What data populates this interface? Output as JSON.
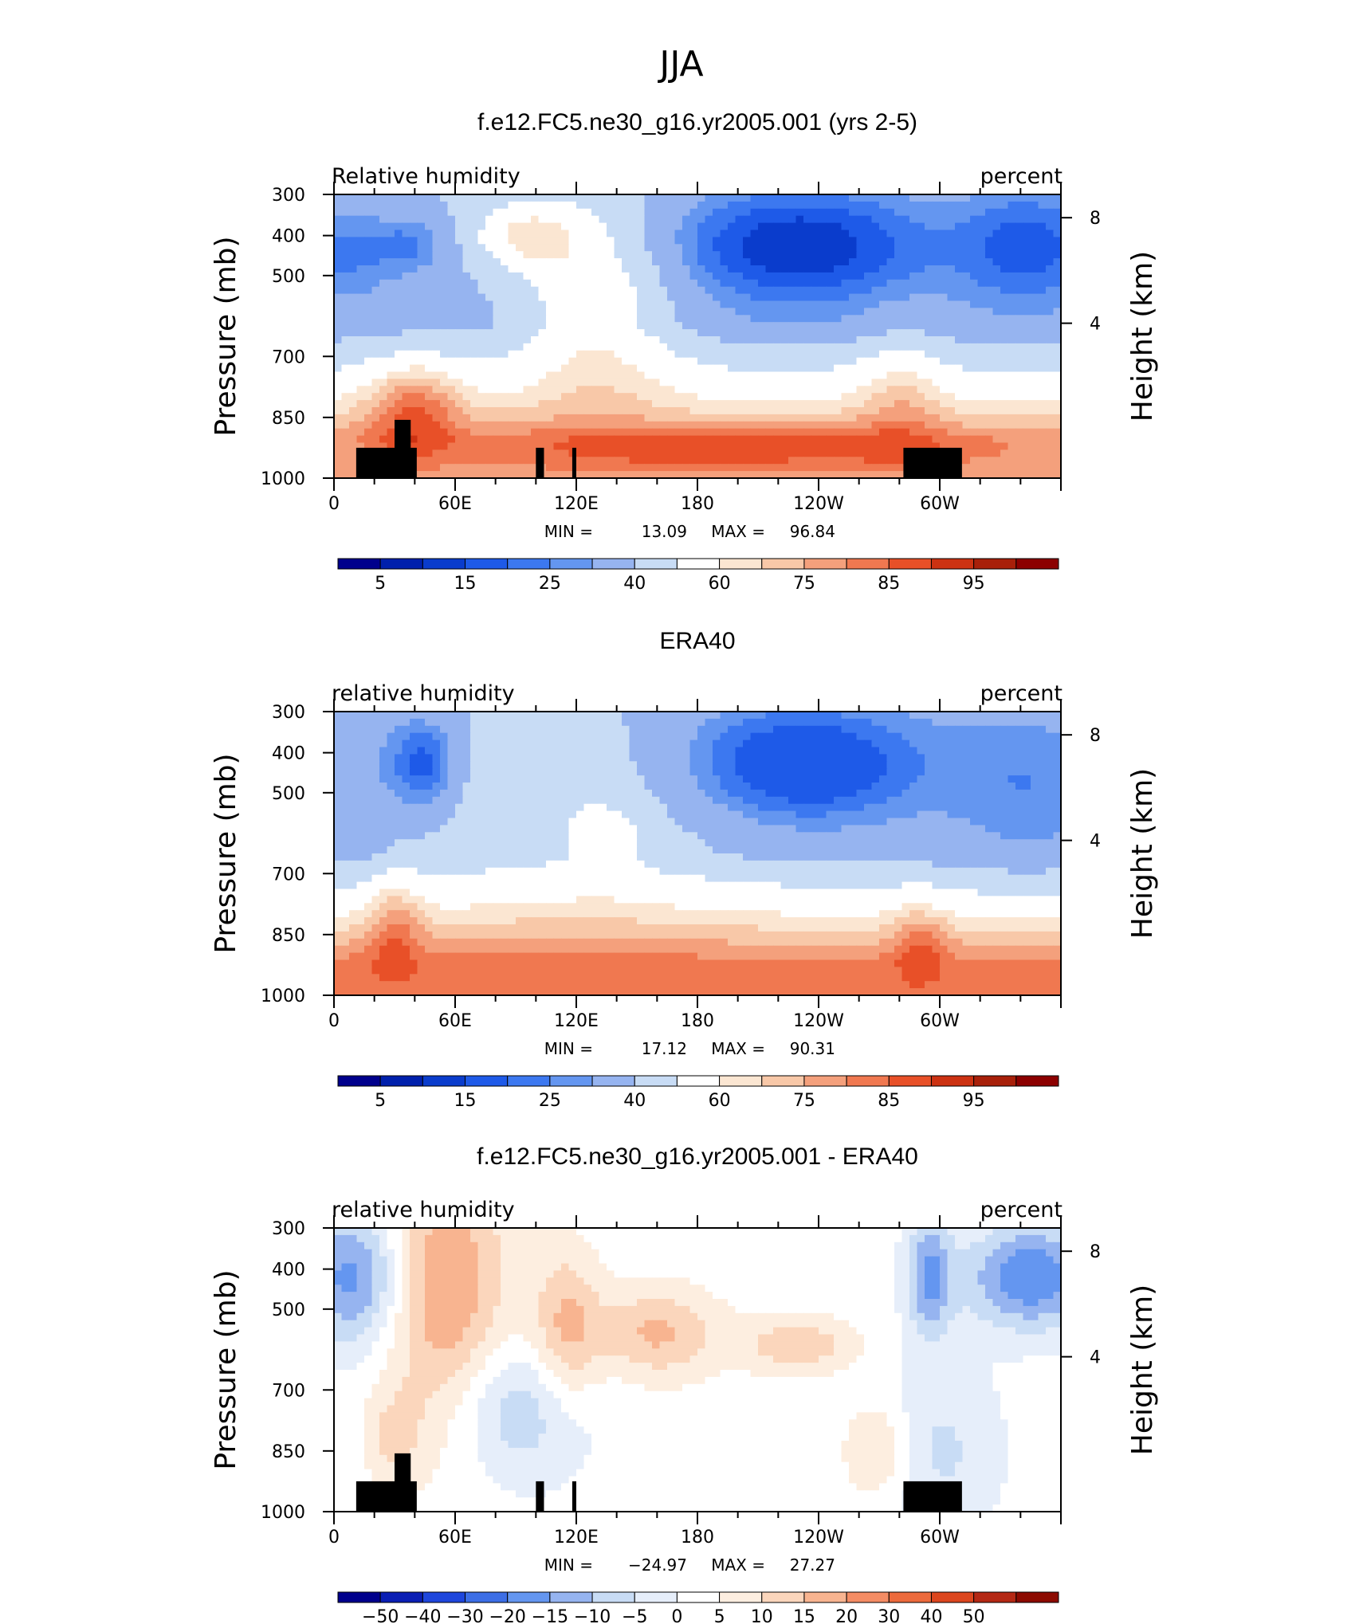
{
  "figure": {
    "title": "JJA"
  },
  "colors": {
    "rh_levels": [
      "#00008c",
      "#0020ac",
      "#0a3ccc",
      "#1e5ae8",
      "#3c78f0",
      "#6496f0",
      "#96b4f0",
      "#c8dcf5",
      "#ffffff",
      "#fbe6d2",
      "#f8c8a8",
      "#f4a07c",
      "#f07850",
      "#e85028",
      "#cc3212",
      "#a8200a",
      "#8c0000"
    ],
    "diff_levels": [
      "#00008c",
      "#0a1eb4",
      "#1e46dc",
      "#3c6ee6",
      "#6496f0",
      "#96b4f0",
      "#c8dcf5",
      "#e6eefa",
      "#ffffff",
      "#fdeee0",
      "#fbd6bc",
      "#f8b490",
      "#f48c64",
      "#ec6a3c",
      "#dc461e",
      "#b42814",
      "#8c0a00"
    ],
    "land": "#000000"
  },
  "chart_data": [
    {
      "type": "contour",
      "id": "model",
      "title": "f.e12.FC5.ne30_g16.yr2005.001 (yrs 2-5)",
      "left_label": "Relative humidity",
      "right_label": "percent",
      "ylabel": "Pressure (mb)",
      "y2label": "Height (km)",
      "yticks": [
        "300",
        "400",
        "500",
        "700",
        "850",
        "1000"
      ],
      "yticks_values": [
        300,
        400,
        500,
        700,
        850,
        1000
      ],
      "y2ticks": [
        "8",
        "4"
      ],
      "y2ticks_values": [
        8,
        4
      ],
      "xticks": [
        "0",
        "60E",
        "120E",
        "180",
        "120W",
        "60W"
      ],
      "xticks_values": [
        0,
        60,
        120,
        180,
        240,
        300
      ],
      "xlim": [
        0,
        360
      ],
      "ylim": [
        300,
        1000
      ],
      "min_label": "MIN =",
      "min_value": "13.09",
      "max_label": "MAX =",
      "max_value": "96.84",
      "colorbar": {
        "labels": [
          "5",
          "15",
          "25",
          "40",
          "60",
          "75",
          "85",
          "95"
        ],
        "scale": "rh"
      },
      "land": true
    },
    {
      "type": "contour",
      "id": "obs",
      "title": "ERA40",
      "left_label": "relative humidity",
      "right_label": "percent",
      "ylabel": "Pressure (mb)",
      "y2label": "Height (km)",
      "yticks": [
        "300",
        "400",
        "500",
        "700",
        "850",
        "1000"
      ],
      "yticks_values": [
        300,
        400,
        500,
        700,
        850,
        1000
      ],
      "y2ticks": [
        "8",
        "4"
      ],
      "y2ticks_values": [
        8,
        4
      ],
      "xticks": [
        "0",
        "60E",
        "120E",
        "180",
        "120W",
        "60W"
      ],
      "xticks_values": [
        0,
        60,
        120,
        180,
        240,
        300
      ],
      "xlim": [
        0,
        360
      ],
      "ylim": [
        300,
        1000
      ],
      "min_label": "MIN =",
      "min_value": "17.12",
      "max_label": "MAX =",
      "max_value": "90.31",
      "colorbar": {
        "labels": [
          "5",
          "15",
          "25",
          "40",
          "60",
          "75",
          "85",
          "95"
        ],
        "scale": "rh"
      },
      "land": false
    },
    {
      "type": "contour",
      "id": "diff",
      "title": "f.e12.FC5.ne30_g16.yr2005.001 - ERA40",
      "left_label": "relative humidity",
      "right_label": "percent",
      "ylabel": "Pressure (mb)",
      "y2label": "Height (km)",
      "yticks": [
        "300",
        "400",
        "500",
        "700",
        "850",
        "1000"
      ],
      "yticks_values": [
        300,
        400,
        500,
        700,
        850,
        1000
      ],
      "y2ticks": [
        "8",
        "4"
      ],
      "y2ticks_values": [
        8,
        4
      ],
      "xticks": [
        "0",
        "60E",
        "120E",
        "180",
        "120W",
        "60W"
      ],
      "xticks_values": [
        0,
        60,
        120,
        180,
        240,
        300
      ],
      "xlim": [
        0,
        360
      ],
      "ylim": [
        300,
        1000
      ],
      "min_label": "MIN =",
      "min_value": "−24.97",
      "max_label": "MAX =",
      "max_value": "27.27",
      "colorbar": {
        "labels": [
          "−50",
          "−40",
          "−30",
          "−20",
          "−15",
          "−10",
          "−5",
          "0",
          "5",
          "10",
          "15",
          "20",
          "30",
          "40",
          "50"
        ],
        "scale": "diff"
      },
      "land": true
    }
  ]
}
